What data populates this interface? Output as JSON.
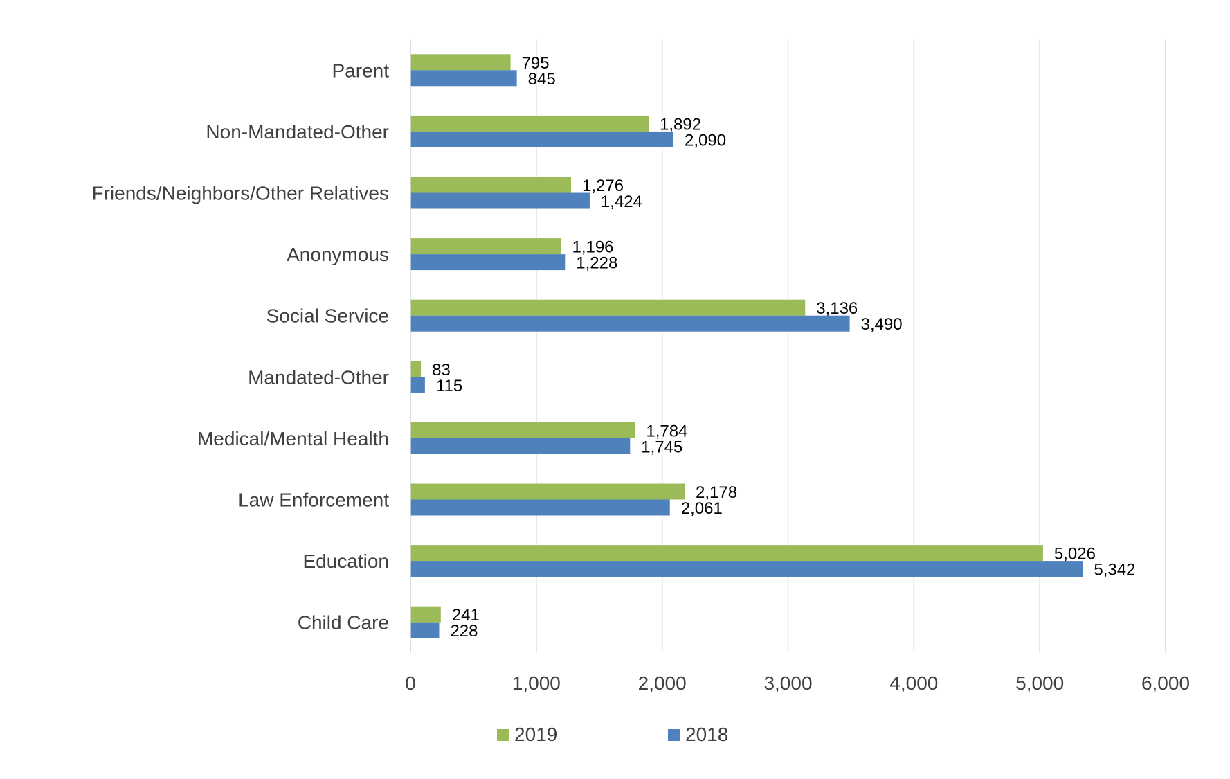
{
  "chart_data": {
    "type": "bar",
    "orientation": "horizontal",
    "categories": [
      "Child Care",
      "Education",
      "Law Enforcement",
      "Medical/Mental Health",
      "Mandated-Other",
      "Social Service",
      "Anonymous",
      "Friends/Neighbors/Other Relatives",
      "Non-Mandated-Other",
      "Parent"
    ],
    "series": [
      {
        "name": "2019",
        "color": "#9bbb59",
        "values": [
          241,
          5026,
          2178,
          1784,
          83,
          3136,
          1196,
          1276,
          1892,
          795
        ],
        "labels": [
          "241",
          "5,026",
          "2,178",
          "1,784",
          "83",
          "3,136",
          "1,196",
          "1,276",
          "1,892",
          "795"
        ]
      },
      {
        "name": "2018",
        "color": "#4f81bd",
        "values": [
          228,
          5342,
          2061,
          1745,
          115,
          3490,
          1228,
          1424,
          2090,
          845
        ],
        "labels": [
          "228",
          "5,342",
          "2,061",
          "1,745",
          "115",
          "3,490",
          "1,228",
          "1,424",
          "2,090",
          "845"
        ]
      }
    ],
    "x_ticks": [
      "0",
      "1,000",
      "2,000",
      "3,000",
      "4,000",
      "5,000",
      "6,000"
    ],
    "xlim": [
      0,
      6000
    ],
    "grid": true,
    "legend_position": "bottom",
    "title": "",
    "xlabel": "",
    "ylabel": ""
  }
}
